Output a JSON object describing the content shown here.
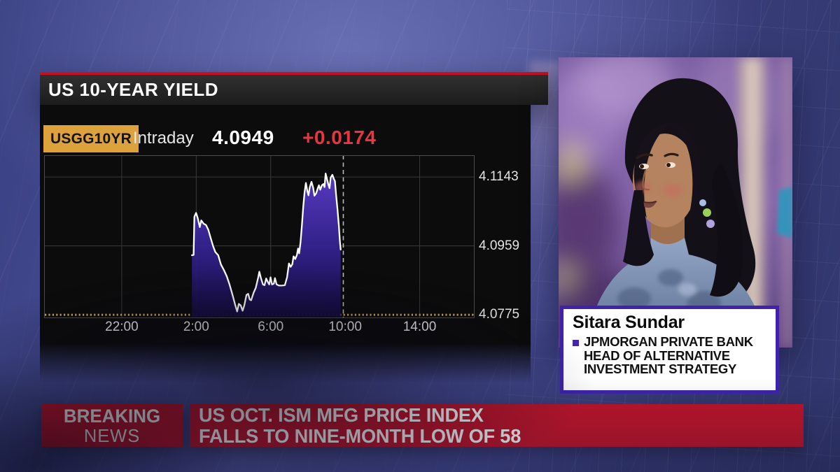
{
  "header": {
    "title": "US 10-YEAR YIELD"
  },
  "quote": {
    "ticker": "USGG10YR",
    "mode": "Intraday",
    "last": "4.0949",
    "change": "+0.0174"
  },
  "chart_data": {
    "type": "area",
    "title": "US 10-YEAR YIELD intraday",
    "series_name": "USGG10YR yield",
    "x_axis": {
      "unit": "hours since 18:00 prior day",
      "xlim": [
        -0.17,
        22.95
      ],
      "ticks": [
        {
          "t": 4,
          "label": "22:00"
        },
        {
          "t": 8,
          "label": "2:00"
        },
        {
          "t": 12,
          "label": "6:00"
        },
        {
          "t": 16,
          "label": "10:00"
        },
        {
          "t": 20,
          "label": "14:00"
        }
      ],
      "gridline_ts": [
        4,
        8,
        12,
        20
      ]
    },
    "y_axis": {
      "ylim": [
        4.0766,
        4.1201
      ],
      "ticks": [
        {
          "v": 4.1143,
          "label": "4.1143"
        },
        {
          "v": 4.0959,
          "label": "4.0959"
        },
        {
          "v": 4.0775,
          "label": "4.0775",
          "style": "dotted-amber"
        }
      ]
    },
    "baseline_value": 4.0775,
    "current_time_t": 15.9,
    "points": [
      [
        7.77,
        4.0934
      ],
      [
        7.86,
        4.0935
      ],
      [
        7.9,
        4.1037
      ],
      [
        7.99,
        4.1047
      ],
      [
        8.08,
        4.1033
      ],
      [
        8.19,
        4.1009
      ],
      [
        8.27,
        4.1027
      ],
      [
        8.4,
        4.1018
      ],
      [
        8.52,
        4.1015
      ],
      [
        8.65,
        4.1002
      ],
      [
        8.77,
        4.0981
      ],
      [
        8.9,
        4.0959
      ],
      [
        9.02,
        4.0943
      ],
      [
        9.18,
        4.0934
      ],
      [
        9.33,
        4.0909
      ],
      [
        9.48,
        4.0895
      ],
      [
        9.64,
        4.0878
      ],
      [
        9.79,
        4.0856
      ],
      [
        9.95,
        4.0828
      ],
      [
        10.1,
        4.08
      ],
      [
        10.2,
        4.0784
      ],
      [
        10.29,
        4.0804
      ],
      [
        10.39,
        4.08
      ],
      [
        10.49,
        4.0786
      ],
      [
        10.58,
        4.08
      ],
      [
        10.7,
        4.0828
      ],
      [
        10.79,
        4.0831
      ],
      [
        10.87,
        4.0816
      ],
      [
        10.95,
        4.0814
      ],
      [
        11.08,
        4.0834
      ],
      [
        11.2,
        4.0847
      ],
      [
        11.33,
        4.0875
      ],
      [
        11.39,
        4.089
      ],
      [
        11.48,
        4.0872
      ],
      [
        11.58,
        4.0856
      ],
      [
        11.67,
        4.0854
      ],
      [
        11.76,
        4.0872
      ],
      [
        11.85,
        4.0862
      ],
      [
        11.92,
        4.0856
      ],
      [
        11.99,
        4.0875
      ],
      [
        12.07,
        4.0856
      ],
      [
        12.17,
        4.0858
      ],
      [
        12.23,
        4.0873
      ],
      [
        12.32,
        4.0856
      ],
      [
        12.45,
        4.0853
      ],
      [
        12.6,
        4.0853
      ],
      [
        12.76,
        4.0854
      ],
      [
        12.88,
        4.0875
      ],
      [
        12.98,
        4.0912
      ],
      [
        13.07,
        4.0903
      ],
      [
        13.16,
        4.091
      ],
      [
        13.23,
        4.0931
      ],
      [
        13.32,
        4.0924
      ],
      [
        13.41,
        4.0935
      ],
      [
        13.47,
        4.0952
      ],
      [
        13.53,
        4.0939
      ],
      [
        13.6,
        4.0968
      ],
      [
        13.67,
        4.1009
      ],
      [
        13.75,
        4.1065
      ],
      [
        13.82,
        4.1102
      ],
      [
        13.89,
        4.1127
      ],
      [
        13.97,
        4.1105
      ],
      [
        14.03,
        4.1094
      ],
      [
        14.1,
        4.1116
      ],
      [
        14.19,
        4.113
      ],
      [
        14.28,
        4.1114
      ],
      [
        14.35,
        4.1093
      ],
      [
        14.44,
        4.1099
      ],
      [
        14.53,
        4.1113
      ],
      [
        14.59,
        4.1121
      ],
      [
        14.66,
        4.1109
      ],
      [
        14.75,
        4.1121
      ],
      [
        14.83,
        4.1124
      ],
      [
        14.89,
        4.1116
      ],
      [
        14.95,
        4.1152
      ],
      [
        15.03,
        4.1136
      ],
      [
        15.1,
        4.1122
      ],
      [
        15.16,
        4.1113
      ],
      [
        15.22,
        4.1141
      ],
      [
        15.31,
        4.1149
      ],
      [
        15.39,
        4.1138
      ],
      [
        15.45,
        4.1132
      ],
      [
        15.51,
        4.1096
      ],
      [
        15.59,
        4.1055
      ],
      [
        15.66,
        4.1012
      ],
      [
        15.72,
        4.0968
      ],
      [
        15.76,
        4.0949
      ]
    ]
  },
  "speaker": {
    "name": "Sitara Sundar",
    "affiliation_lines": [
      "JPMORGAN PRIVATE BANK",
      "HEAD OF ALTERNATIVE",
      "INVESTMENT STRATEGY"
    ]
  },
  "banner": {
    "kicker_line1": "BREAKING",
    "kicker_line2": "NEWS",
    "headline_line1": "US OCT. ISM MFG PRICE INDEX",
    "headline_line2": "FALLS TO NINE-MONTH LOW OF 58"
  },
  "colors": {
    "title_accent_red": "#c8101e",
    "banner_red": "#c0152a",
    "ticker_amber": "#dda23b",
    "change_red": "#e8363f",
    "chart_line": "#ffffff",
    "chart_fill_top": "#5a3cc8",
    "chart_fill_bottom": "#140b3a",
    "baseline_amber": "#d6a73a",
    "info_border_purple": "#3f24ab"
  }
}
